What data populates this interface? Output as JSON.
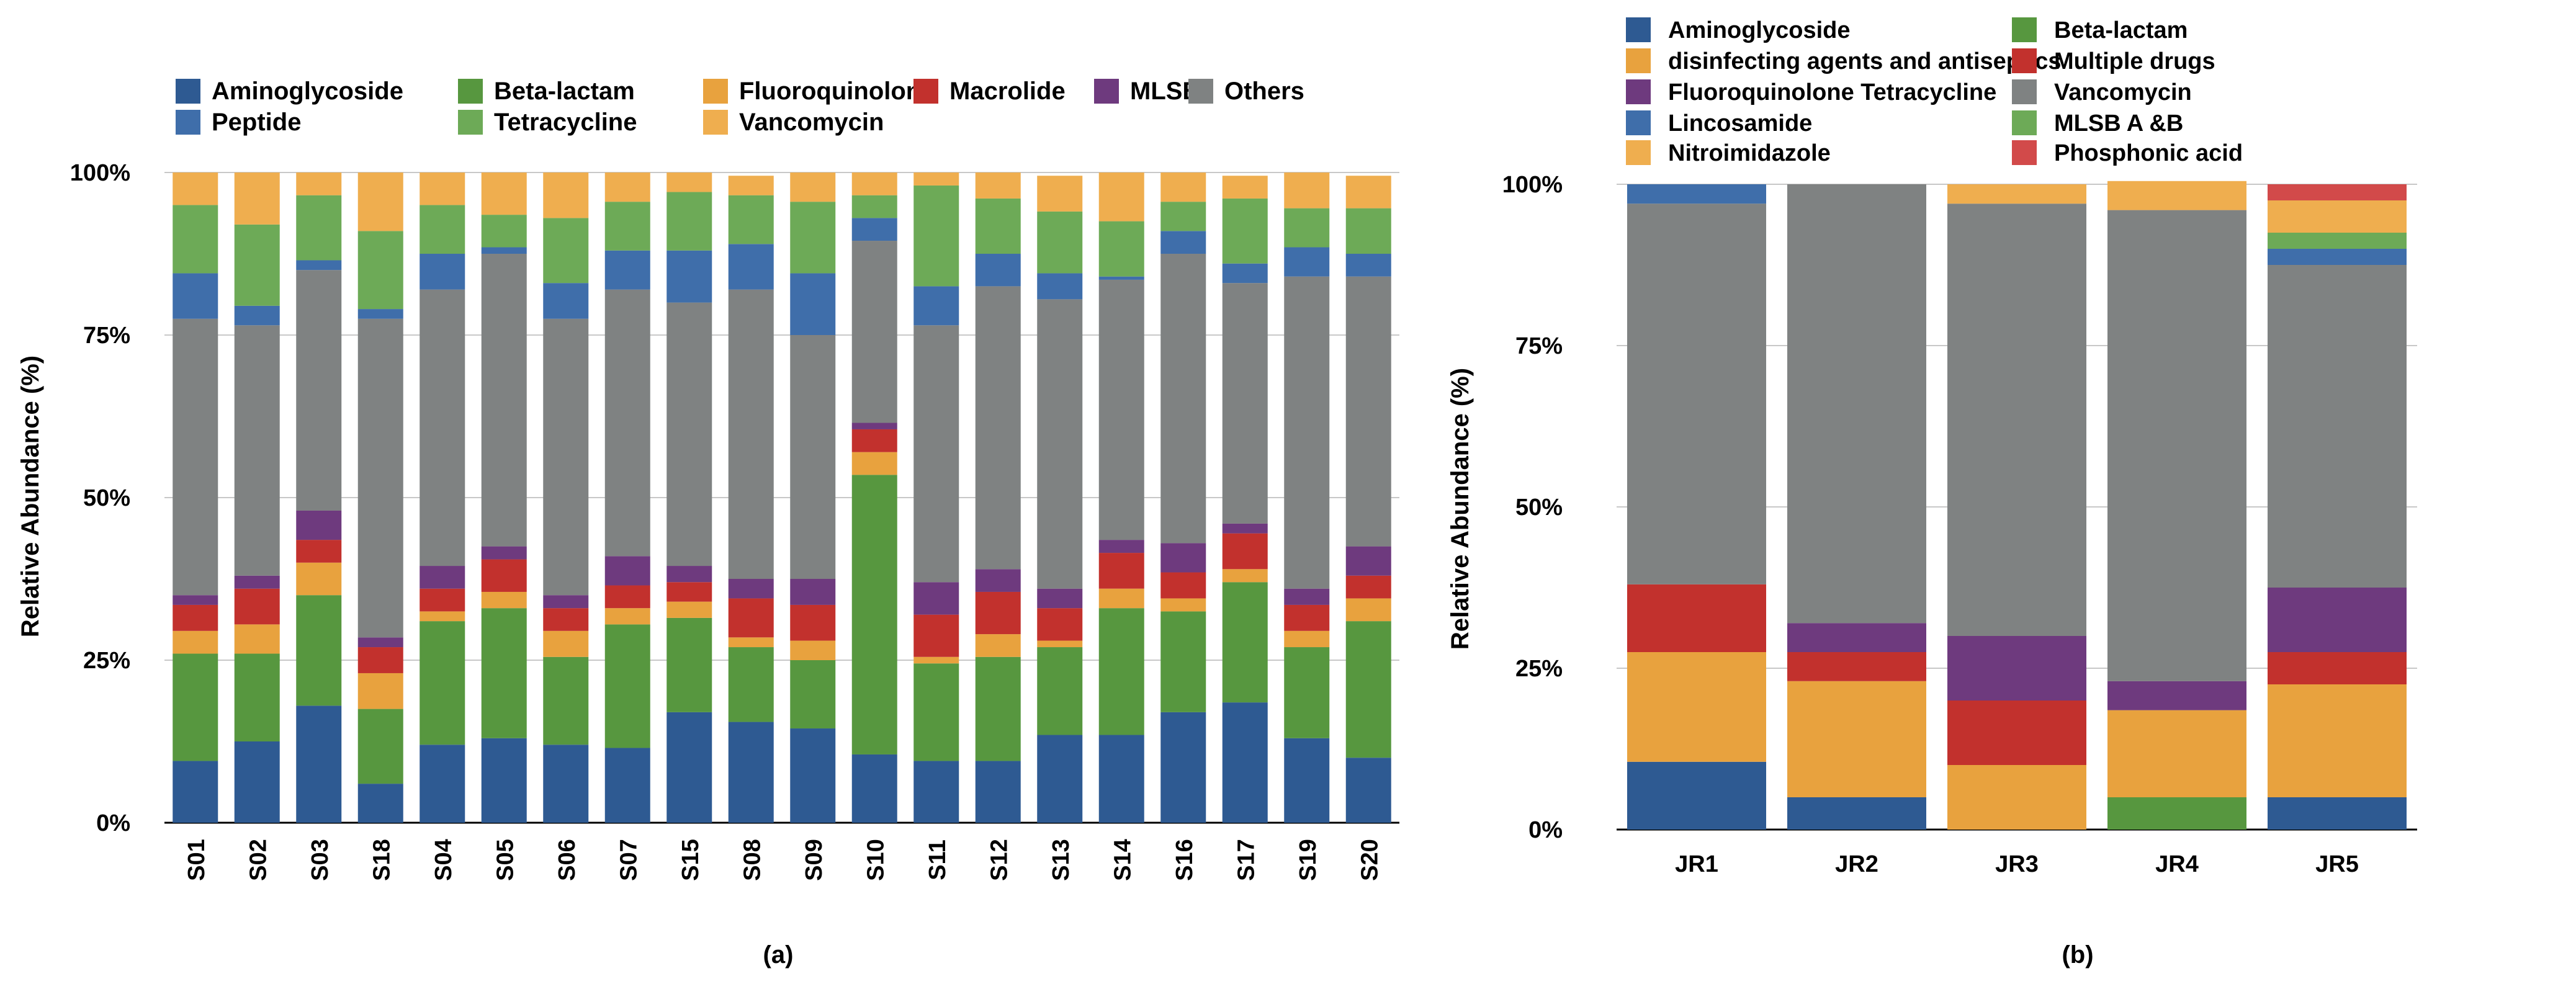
{
  "colors": {
    "Aminoglycoside": "#2e5a92",
    "Peptide": "#3f6eaa",
    "Beta-lactam": "#57973f",
    "Tetracycline": "#6daa57",
    "Fluoroquinolone": "#e8a23e",
    "Vancomycin_a": "#efae4f",
    "Macrolide": "#c2312d",
    "MLSB": "#6e3a7e",
    "Others": "#7f8282",
    "disinfecting agents and antiseptics": "#e8a23e",
    "Multiple drugs": "#c2312d",
    "Fluoroquinolone Tetracycline": "#6e3a7e",
    "Vancomycin_b": "#7f8282",
    "Lincosamide": "#3f6eaa",
    "MLSB A &B": "#6daa57",
    "Nitroimidazole": "#efae4f",
    "Phosphonic acid": "#d24a4a"
  },
  "chart_data": [
    {
      "type": "bar",
      "stacked": true,
      "panel_label": "(a)",
      "ylabel": "Relative Abundance (%)",
      "ylim": [
        0,
        100
      ],
      "yticks": [
        "0%",
        "25%",
        "50%",
        "75%",
        "100%"
      ],
      "legend_position": "top",
      "legend": [
        {
          "label": "Aminoglycoside",
          "color_key": "Aminoglycoside"
        },
        {
          "label": "Beta-lactam",
          "color_key": "Beta-lactam"
        },
        {
          "label": "Fluoroquinolone",
          "color_key": "Fluoroquinolone"
        },
        {
          "label": "Macrolide",
          "color_key": "Macrolide"
        },
        {
          "label": "MLSB",
          "color_key": "MLSB"
        },
        {
          "label": "Others",
          "color_key": "Others"
        },
        {
          "label": "Peptide",
          "color_key": "Peptide"
        },
        {
          "label": "Tetracycline",
          "color_key": "Tetracycline"
        },
        {
          "label": "Vancomycin",
          "color_key": "Vancomycin_a"
        }
      ],
      "categories": [
        "S01",
        "S02",
        "S03",
        "S18",
        "S04",
        "S05",
        "S06",
        "S07",
        "S15",
        "S08",
        "S09",
        "S10",
        "S11",
        "S12",
        "S13",
        "S14",
        "S16",
        "S17",
        "S19",
        "S20"
      ],
      "series": [
        {
          "name": "Aminoglycoside",
          "color_key": "Aminoglycoside",
          "values": [
            9.5,
            12.5,
            18,
            6,
            12,
            13,
            12,
            11.5,
            17,
            15.5,
            14.5,
            10.5,
            9.5,
            9.5,
            13.5,
            13.5,
            17,
            18.5,
            13,
            10
          ]
        },
        {
          "name": "Beta-lactam",
          "color_key": "Beta-lactam",
          "values": [
            16.5,
            13.5,
            17,
            11.5,
            19,
            20,
            13.5,
            19,
            14.5,
            11.5,
            10.5,
            43,
            15,
            16,
            13.5,
            19.5,
            15.5,
            18.5,
            14,
            21
          ]
        },
        {
          "name": "Fluoroquinolone",
          "color_key": "Fluoroquinolone",
          "values": [
            3.5,
            4.5,
            5,
            5.5,
            1.5,
            2.5,
            4,
            2.5,
            2.5,
            1.5,
            3,
            3.5,
            1,
            3.5,
            1,
            3,
            2,
            2,
            2.5,
            3.5
          ]
        },
        {
          "name": "Macrolide",
          "color_key": "Macrolide",
          "values": [
            4,
            5.5,
            3.5,
            4,
            3.5,
            5,
            3.5,
            3.5,
            3,
            6,
            5.5,
            3.5,
            6.5,
            6.5,
            5,
            5.5,
            4,
            5.5,
            4,
            3.5
          ]
        },
        {
          "name": "MLSB",
          "color_key": "MLSB",
          "values": [
            1.5,
            2,
            4.5,
            1.5,
            3.5,
            2,
            2,
            4.5,
            2.5,
            3,
            4,
            1,
            5,
            3.5,
            3,
            2,
            4.5,
            1.5,
            2.5,
            4.5
          ]
        },
        {
          "name": "Others",
          "color_key": "Others",
          "values": [
            42.5,
            38.5,
            37,
            49,
            42.5,
            45,
            42.5,
            41,
            40.5,
            44.5,
            37.5,
            28,
            39.5,
            43.5,
            44.5,
            40,
            44.5,
            37,
            48,
            41.5
          ]
        },
        {
          "name": "Peptide",
          "color_key": "Peptide",
          "values": [
            7,
            3,
            1.5,
            1.5,
            5.5,
            1,
            5.5,
            6,
            8,
            7,
            9.5,
            3.5,
            6,
            5,
            4,
            0.5,
            3.5,
            3,
            4.5,
            3.5
          ]
        },
        {
          "name": "Tetracycline",
          "color_key": "Tetracycline",
          "values": [
            10.5,
            12.5,
            10,
            12,
            7.5,
            5,
            10,
            7.5,
            9,
            7.5,
            11,
            3.5,
            15.5,
            8.5,
            9.5,
            8.5,
            4.5,
            10,
            6,
            7
          ]
        },
        {
          "name": "Vancomycin",
          "color_key": "Vancomycin_a",
          "values": [
            5,
            8,
            3.5,
            9,
            5,
            6.5,
            7,
            4.5,
            3,
            3,
            4.5,
            3.5,
            2,
            4,
            5.5,
            7.5,
            4.5,
            3.5,
            5.5,
            5
          ]
        }
      ]
    },
    {
      "type": "bar",
      "stacked": true,
      "panel_label": "(b)",
      "ylabel": "Relative Abundance (%)",
      "ylim": [
        0,
        100
      ],
      "yticks": [
        "0%",
        "25%",
        "50%",
        "75%",
        "100%"
      ],
      "legend_position": "top",
      "legend": [
        {
          "label": "Aminoglycoside",
          "color_key": "Aminoglycoside"
        },
        {
          "label": "disinfecting agents and antiseptics",
          "color_key": "disinfecting agents and antiseptics"
        },
        {
          "label": "Fluoroquinolone Tetracycline",
          "color_key": "Fluoroquinolone Tetracycline"
        },
        {
          "label": "Lincosamide",
          "color_key": "Lincosamide"
        },
        {
          "label": "Nitroimidazole",
          "color_key": "Nitroimidazole"
        },
        {
          "label": "Beta-lactam",
          "color_key": "Beta-lactam"
        },
        {
          "label": "Multiple drugs",
          "color_key": "Multiple drugs"
        },
        {
          "label": "Vancomycin",
          "color_key": "Vancomycin_b"
        },
        {
          "label": "MLSB A &B",
          "color_key": "MLSB A &B"
        },
        {
          "label": "Phosphonic acid",
          "color_key": "Phosphonic acid"
        }
      ],
      "categories": [
        "JR1",
        "JR2",
        "JR3",
        "JR4",
        "JR5"
      ],
      "series": [
        {
          "name": "Aminoglycoside",
          "color_key": "Aminoglycoside",
          "values": [
            10.5,
            5,
            0,
            0,
            5
          ]
        },
        {
          "name": "Beta-lactam",
          "color_key": "Beta-lactam",
          "values": [
            0,
            0,
            0,
            5,
            0
          ]
        },
        {
          "name": "disinfecting agents and antiseptics",
          "color_key": "disinfecting agents and antiseptics",
          "values": [
            17,
            18,
            10,
            13.5,
            17.5
          ]
        },
        {
          "name": "Multiple drugs",
          "color_key": "Multiple drugs",
          "values": [
            10.5,
            4.5,
            10,
            0,
            5
          ]
        },
        {
          "name": "Fluoroquinolone Tetracycline",
          "color_key": "Fluoroquinolone Tetracycline",
          "values": [
            0,
            4.5,
            10,
            4.5,
            10
          ]
        },
        {
          "name": "Vancomycin",
          "color_key": "Vancomycin_b",
          "values": [
            59,
            68,
            67,
            73,
            50
          ]
        },
        {
          "name": "Lincosamide",
          "color_key": "Lincosamide",
          "values": [
            3,
            0,
            0,
            0,
            2.5
          ]
        },
        {
          "name": "MLSB A &B",
          "color_key": "MLSB A &B",
          "values": [
            0,
            0,
            0,
            0,
            2.5
          ]
        },
        {
          "name": "Nitroimidazole",
          "color_key": "Nitroimidazole",
          "values": [
            0,
            0,
            3,
            4.5,
            5
          ]
        },
        {
          "name": "Phosphonic acid",
          "color_key": "Phosphonic acid",
          "values": [
            0,
            0,
            0,
            0,
            2.5
          ]
        }
      ]
    }
  ]
}
